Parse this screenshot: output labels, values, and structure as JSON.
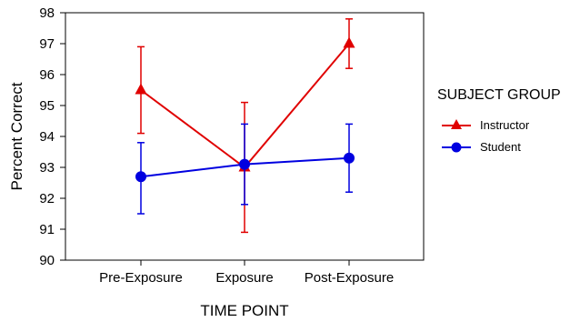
{
  "chart_data": {
    "type": "line",
    "title": "",
    "xlabel": "TIME POINT",
    "ylabel": "Percent Correct",
    "categories": [
      "Pre-Exposure",
      "Exposure",
      "Post-Exposure"
    ],
    "ylim": [
      90,
      98
    ],
    "yticks": [
      90,
      91,
      92,
      93,
      94,
      95,
      96,
      97,
      98
    ],
    "grid": false,
    "legend": {
      "title": "SUBJECT GROUP",
      "placement": "right"
    },
    "series": [
      {
        "name": "Instructor",
        "color": "#e00000",
        "marker": "triangle",
        "values": [
          95.5,
          93.0,
          97.0
        ],
        "error_low": [
          94.1,
          90.9,
          96.2
        ],
        "error_high": [
          96.9,
          95.1,
          97.8
        ]
      },
      {
        "name": "Student",
        "color": "#0000e0",
        "marker": "circle",
        "values": [
          92.7,
          93.1,
          93.3
        ],
        "error_low": [
          91.5,
          91.8,
          92.2
        ],
        "error_high": [
          93.8,
          94.4,
          94.4
        ]
      }
    ]
  }
}
